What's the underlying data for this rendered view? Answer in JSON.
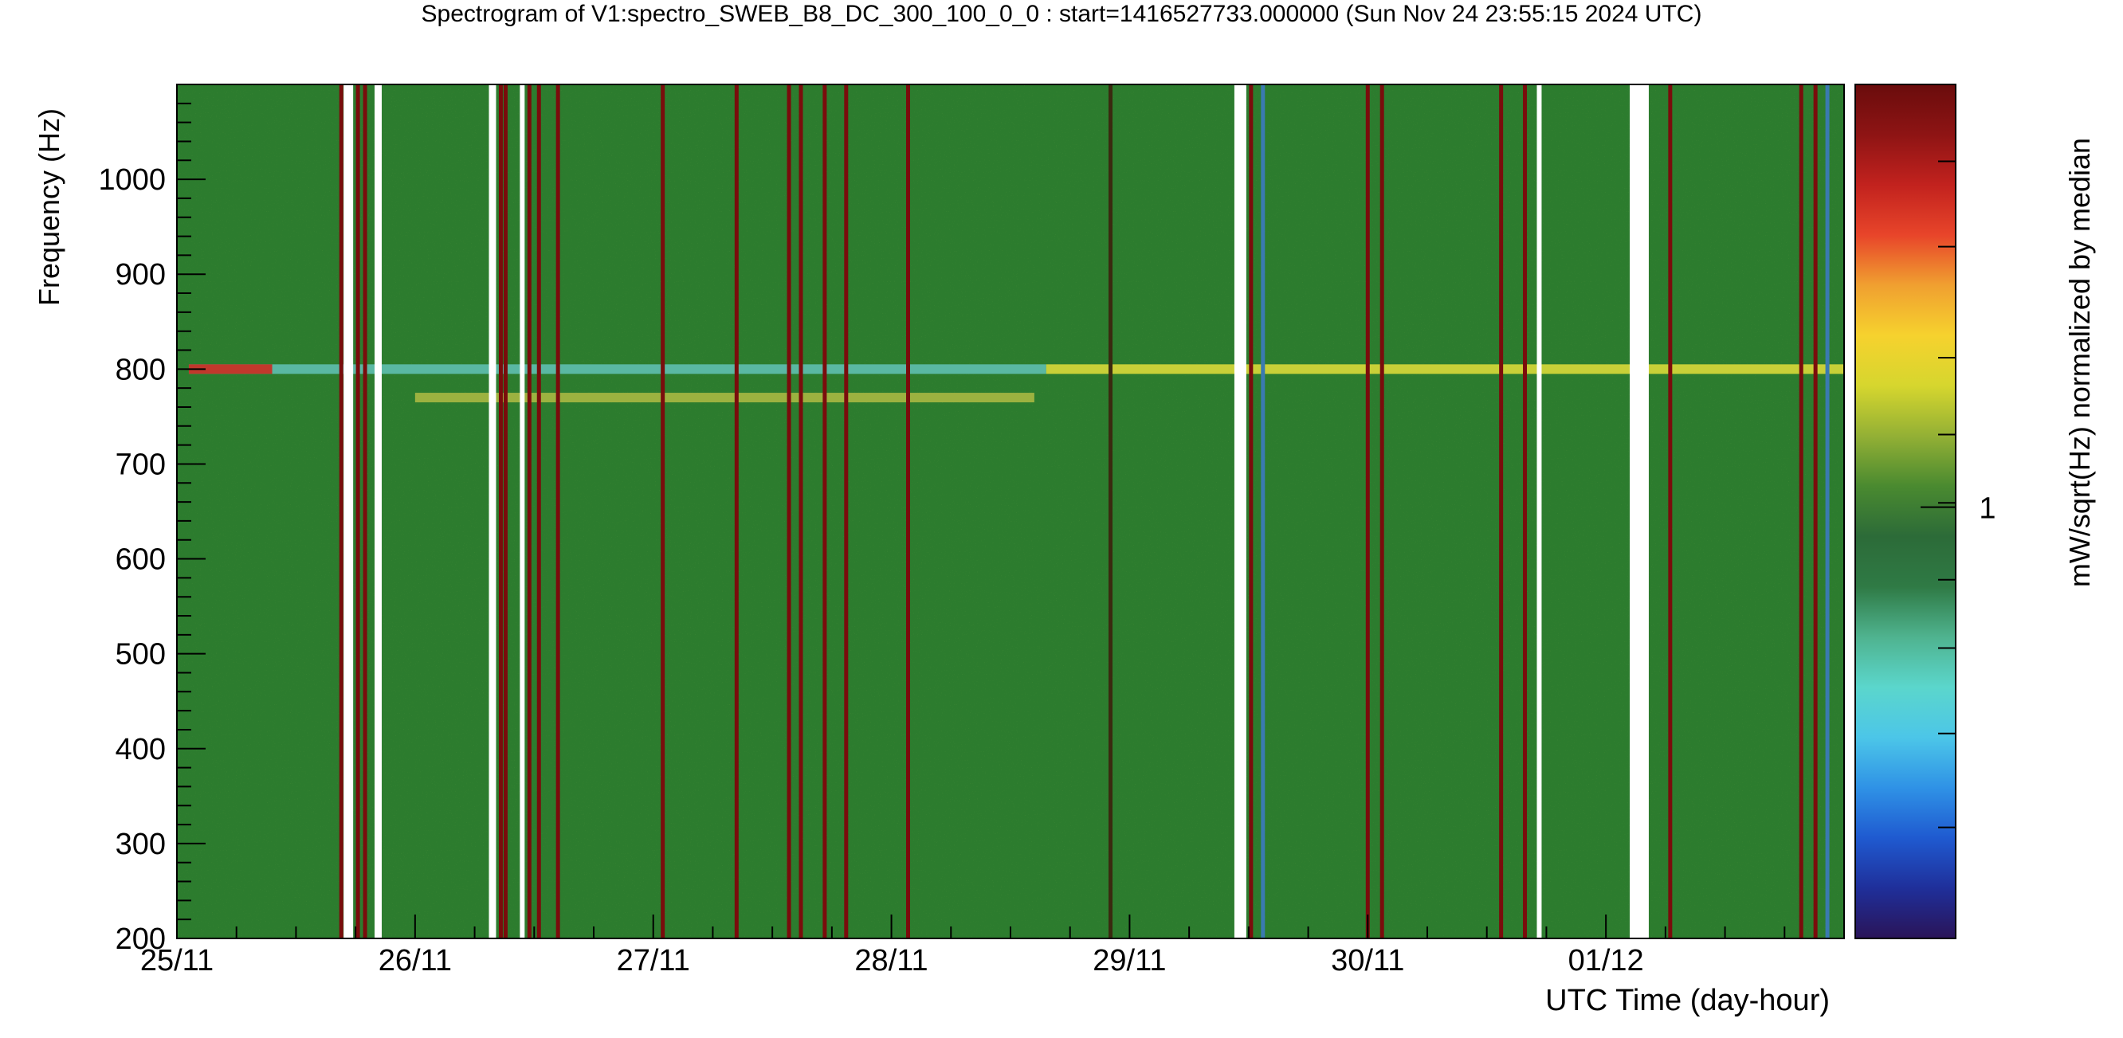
{
  "chart_data": {
    "type": "heatmap",
    "title": "Spectrogram of V1:spectro_SWEB_B8_DC_300_100_0_0 : start=1416527733.000000 (Sun Nov 24 23:55:15 2024 UTC)",
    "xlabel": "UTC Time (day-hour)",
    "ylabel": "Frequency (Hz)",
    "zlabel": "mW/sqrt(Hz) normalized by median",
    "x_range_days": [
      0.0,
      7.0
    ],
    "ylim": [
      200,
      1100
    ],
    "x_ticks": [
      {
        "label": "25/11",
        "day": 0
      },
      {
        "label": "26/11",
        "day": 1
      },
      {
        "label": "27/11",
        "day": 2
      },
      {
        "label": "28/11",
        "day": 3
      },
      {
        "label": "29/11",
        "day": 4
      },
      {
        "label": "30/11",
        "day": 5
      },
      {
        "label": "01/12",
        "day": 6
      }
    ],
    "y_ticks": [
      200,
      300,
      400,
      500,
      600,
      700,
      800,
      900,
      1000
    ],
    "colorbar": {
      "marked_value": 1,
      "marked_label": "1",
      "colors_bottom_to_top": [
        "#2a1458",
        "#1f2f9a",
        "#1f5ad0",
        "#2f92e6",
        "#4cc6e8",
        "#5bd6cc",
        "#4fb38f",
        "#2f7a45",
        "#2c6b38",
        "#4a8a30",
        "#93b035",
        "#d6d62e",
        "#f6d22e",
        "#f0a030",
        "#e8452a",
        "#c2221e",
        "#8e1414",
        "#6a0c0c"
      ],
      "minor_tick_fractions": [
        0.13,
        0.24,
        0.34,
        0.42,
        0.51,
        0.59,
        0.68,
        0.81,
        0.91
      ]
    },
    "background_color": "#2c7c2e",
    "horizontal_lines": [
      {
        "freq": 800,
        "x_start": 0.05,
        "x_end": 3.65,
        "color": "#5fbfb0"
      },
      {
        "freq": 800,
        "x_start": 3.65,
        "x_end": 7.0,
        "color": "#d9d93a"
      },
      {
        "freq": 800,
        "x_start": 0.05,
        "x_end": 0.4,
        "color": "#cc2a1f"
      },
      {
        "freq": 770,
        "x_start": 1.0,
        "x_end": 3.6,
        "color": "#a9b843"
      }
    ],
    "gaps": [
      {
        "x_start": 0.7,
        "x_end": 0.74
      },
      {
        "x_start": 0.83,
        "x_end": 0.86
      },
      {
        "x_start": 1.31,
        "x_end": 1.34
      },
      {
        "x_start": 1.44,
        "x_end": 1.46
      },
      {
        "x_start": 4.44,
        "x_end": 4.49
      },
      {
        "x_start": 5.71,
        "x_end": 5.73
      },
      {
        "x_start": 6.1,
        "x_end": 6.18
      }
    ],
    "vertical_lines": [
      {
        "x": 0.69,
        "color": "#7a0c0c"
      },
      {
        "x": 0.76,
        "color": "#7a0c0c"
      },
      {
        "x": 0.79,
        "color": "#7a0c0c"
      },
      {
        "x": 1.36,
        "color": "#7a0c0c"
      },
      {
        "x": 1.38,
        "color": "#7a0c0c"
      },
      {
        "x": 1.48,
        "color": "#7a0c0c"
      },
      {
        "x": 1.52,
        "color": "#7a0c0c"
      },
      {
        "x": 1.6,
        "color": "#7a0c0c"
      },
      {
        "x": 2.04,
        "color": "#7a0c0c"
      },
      {
        "x": 2.35,
        "color": "#7a0c0c"
      },
      {
        "x": 2.57,
        "color": "#7a0c0c"
      },
      {
        "x": 2.62,
        "color": "#7a0c0c"
      },
      {
        "x": 2.72,
        "color": "#7a0c0c"
      },
      {
        "x": 2.81,
        "color": "#7a0c0c"
      },
      {
        "x": 3.07,
        "color": "#7a0c0c"
      },
      {
        "x": 3.92,
        "color": "#3a2a10"
      },
      {
        "x": 4.51,
        "color": "#7a0c0c"
      },
      {
        "x": 4.56,
        "color": "#3a7ab0"
      },
      {
        "x": 5.0,
        "color": "#7a0c0c"
      },
      {
        "x": 5.06,
        "color": "#7a0c0c"
      },
      {
        "x": 5.56,
        "color": "#7a0c0c"
      },
      {
        "x": 5.66,
        "color": "#7a0c0c"
      },
      {
        "x": 6.27,
        "color": "#7a0c0c"
      },
      {
        "x": 6.82,
        "color": "#7a0c0c"
      },
      {
        "x": 6.88,
        "color": "#7a0c0c"
      },
      {
        "x": 6.93,
        "color": "#3a7ab0"
      }
    ],
    "grid": false
  }
}
